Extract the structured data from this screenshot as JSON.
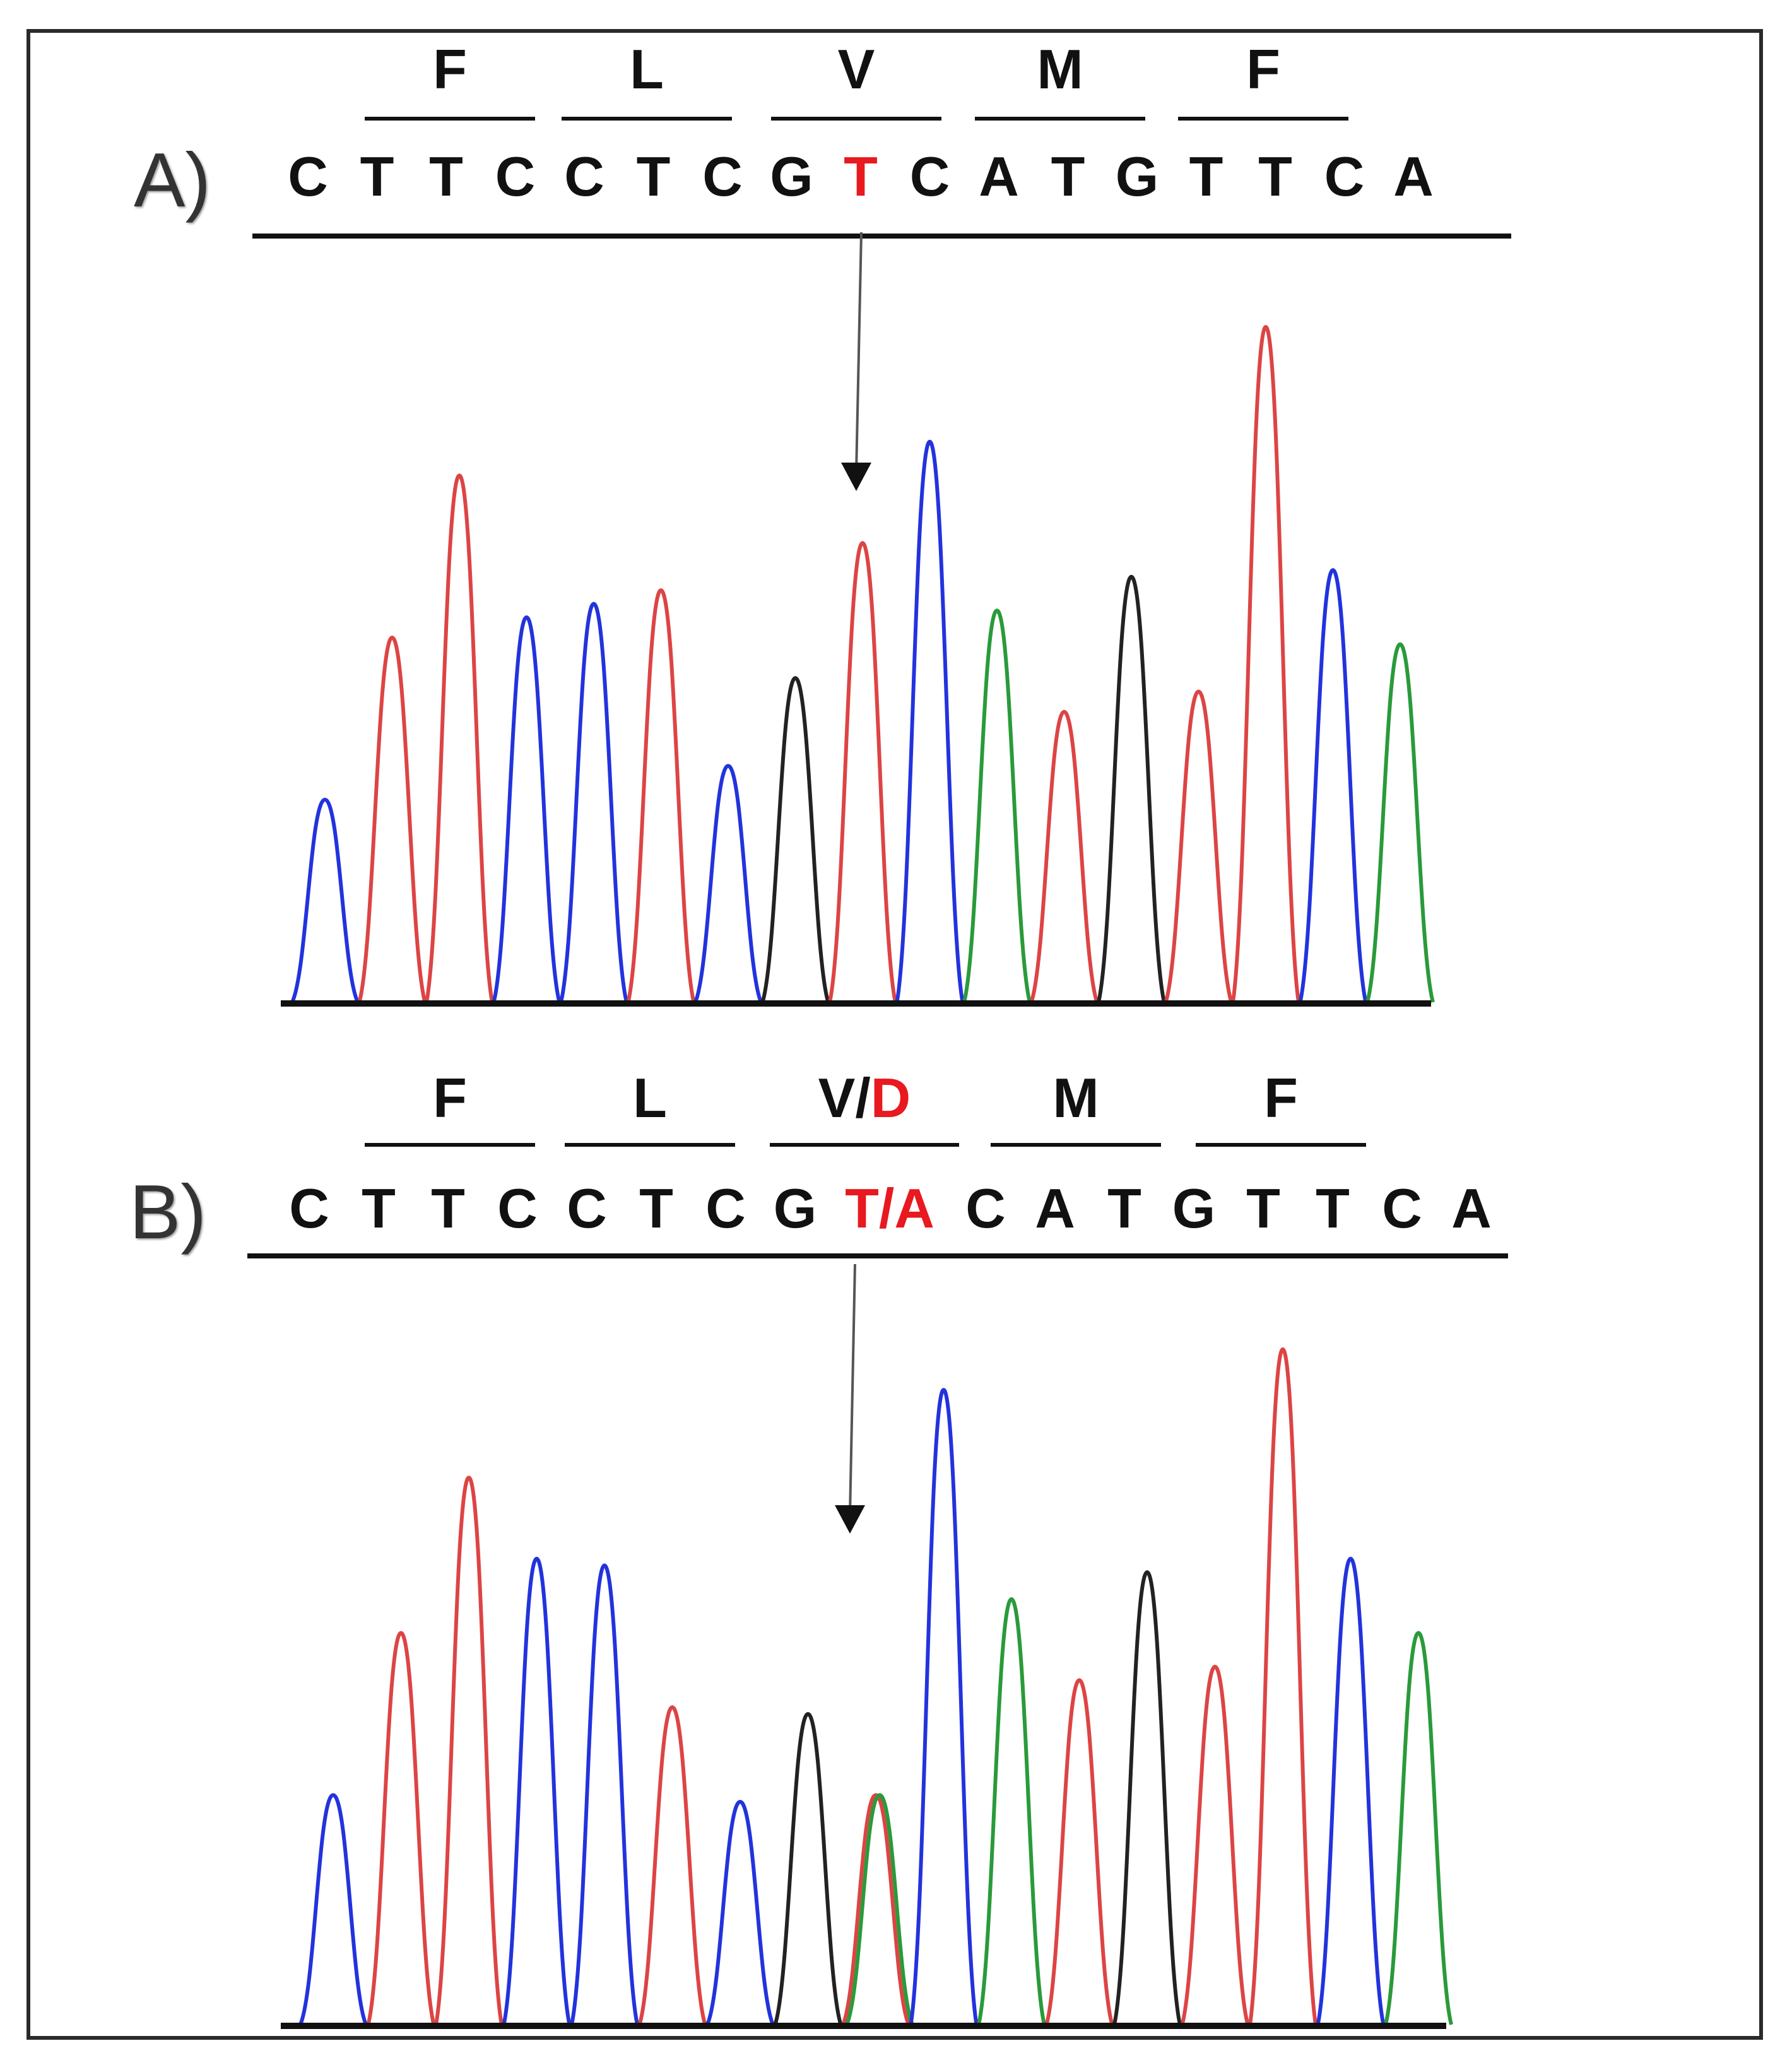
{
  "colors": {
    "normal": "#111111",
    "highlight": "#e8191f",
    "trace_blue": "#2233dd",
    "trace_red": "#dd4444",
    "trace_green": "#2a9a3a",
    "trace_black": "#222222",
    "baseline": "#111111"
  },
  "panels": [
    {
      "label": "A)",
      "amino_acids": [
        {
          "text": "F"
        },
        {
          "text": "L"
        },
        {
          "text": "V"
        },
        {
          "text": "M"
        },
        {
          "text": "F"
        }
      ],
      "bases": [
        {
          "text": "C"
        },
        {
          "text": "T"
        },
        {
          "text": "T"
        },
        {
          "text": "C"
        },
        {
          "text": "C"
        },
        {
          "text": "T"
        },
        {
          "text": "C"
        },
        {
          "text": "G"
        },
        {
          "text": "T",
          "highlight": true
        },
        {
          "text": "C"
        },
        {
          "text": "A"
        },
        {
          "text": "T"
        },
        {
          "text": "G"
        },
        {
          "text": "T"
        },
        {
          "text": "T"
        },
        {
          "text": "C"
        },
        {
          "text": "A"
        }
      ],
      "peaks": [
        {
          "color": "blue",
          "height": 0.3
        },
        {
          "color": "red",
          "height": 0.54
        },
        {
          "color": "red",
          "height": 0.78
        },
        {
          "color": "blue",
          "height": 0.57
        },
        {
          "color": "blue",
          "height": 0.59
        },
        {
          "color": "red",
          "height": 0.61
        },
        {
          "color": "blue",
          "height": 0.35
        },
        {
          "color": "black",
          "height": 0.48
        },
        {
          "color": "red",
          "height": 0.68
        },
        {
          "color": "blue",
          "height": 0.83
        },
        {
          "color": "green",
          "height": 0.58
        },
        {
          "color": "red",
          "height": 0.43
        },
        {
          "color": "black",
          "height": 0.63
        },
        {
          "color": "red",
          "height": 0.46
        },
        {
          "color": "red",
          "height": 1.0
        },
        {
          "color": "blue",
          "height": 0.64
        },
        {
          "color": "green",
          "height": 0.53
        }
      ]
    },
    {
      "label": "B)",
      "amino_acids": [
        {
          "text": "F"
        },
        {
          "text": "L"
        },
        {
          "text": "V/",
          "highlight_text": "D"
        },
        {
          "text": "M"
        },
        {
          "text": "F"
        }
      ],
      "bases": [
        {
          "text": "C"
        },
        {
          "text": "T"
        },
        {
          "text": "T"
        },
        {
          "text": "C"
        },
        {
          "text": "C"
        },
        {
          "text": "T"
        },
        {
          "text": "C"
        },
        {
          "text": "G"
        },
        {
          "text": "T/A",
          "highlight": true
        },
        {
          "text": "C"
        },
        {
          "text": "A"
        },
        {
          "text": "T"
        },
        {
          "text": "G"
        },
        {
          "text": "T"
        },
        {
          "text": "T"
        },
        {
          "text": "C"
        },
        {
          "text": "A"
        }
      ],
      "peaks": [
        {
          "color": "blue",
          "height": 0.34
        },
        {
          "color": "red",
          "height": 0.58
        },
        {
          "color": "red",
          "height": 0.81
        },
        {
          "color": "blue",
          "height": 0.69
        },
        {
          "color": "blue",
          "height": 0.68
        },
        {
          "color": "red",
          "height": 0.47
        },
        {
          "color": "blue",
          "height": 0.33
        },
        {
          "color": "black",
          "height": 0.46
        },
        {
          "color": "red+green",
          "height": 0.34
        },
        {
          "color": "blue",
          "height": 0.94
        },
        {
          "color": "green",
          "height": 0.63
        },
        {
          "color": "red",
          "height": 0.51
        },
        {
          "color": "black",
          "height": 0.67
        },
        {
          "color": "red",
          "height": 0.53
        },
        {
          "color": "red",
          "height": 1.0
        },
        {
          "color": "blue",
          "height": 0.69
        },
        {
          "color": "green",
          "height": 0.58
        }
      ]
    }
  ]
}
